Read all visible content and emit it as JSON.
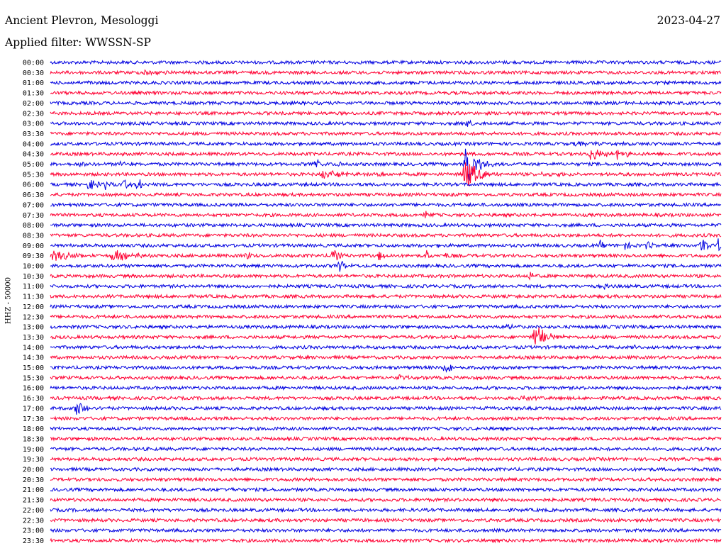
{
  "header": {
    "station": "Ancient Plevron, Mesologgi",
    "date": "2023-04-27",
    "filter": "Applied filter: WWSSN-SP"
  },
  "chart_data": {
    "type": "line",
    "title": "Ancient Plevron, Mesologgi",
    "ylabel": "HHZ - 50000",
    "colors": [
      "#0000e0",
      "#ff0033"
    ],
    "traces": [
      {
        "label": "00:00",
        "events": []
      },
      {
        "label": "00:30",
        "events": [
          {
            "x": 0.14,
            "amp": 0.5,
            "dur": 0.03
          }
        ]
      },
      {
        "label": "01:00",
        "events": [
          {
            "x": 0.055,
            "amp": 0.2,
            "dur": 0.01
          }
        ]
      },
      {
        "label": "01:30",
        "events": []
      },
      {
        "label": "02:00",
        "events": []
      },
      {
        "label": "02:30",
        "events": []
      },
      {
        "label": "03:00",
        "events": [
          {
            "x": 0.617,
            "amp": 0.6,
            "dur": 0.02
          }
        ]
      },
      {
        "label": "03:30",
        "events": []
      },
      {
        "label": "04:00",
        "events": [
          {
            "x": 0.78,
            "amp": 0.4,
            "dur": 0.05
          }
        ]
      },
      {
        "label": "04:30",
        "events": [
          {
            "x": 0.805,
            "amp": 1.0,
            "dur": 0.04
          },
          {
            "x": 0.845,
            "amp": 0.7,
            "dur": 0.01
          },
          {
            "x": 0.86,
            "amp": 0.6,
            "dur": 0.01
          }
        ]
      },
      {
        "label": "05:00",
        "events": [
          {
            "x": 0.045,
            "amp": 0.8,
            "dur": 0.01
          },
          {
            "x": 0.105,
            "amp": 0.9,
            "dur": 0.01
          },
          {
            "x": 0.395,
            "amp": 0.6,
            "dur": 0.02
          },
          {
            "x": 0.43,
            "amp": 0.5,
            "dur": 0.01
          },
          {
            "x": 0.617,
            "amp": 4.5,
            "dur": 0.03
          }
        ]
      },
      {
        "label": "05:30",
        "events": [
          {
            "x": 0.405,
            "amp": 0.7,
            "dur": 0.05
          },
          {
            "x": 0.49,
            "amp": 0.9,
            "dur": 0.01
          },
          {
            "x": 0.617,
            "amp": 2.5,
            "dur": 0.04
          },
          {
            "x": 0.72,
            "amp": 0.2,
            "dur": 0.13
          }
        ]
      },
      {
        "label": "06:00",
        "events": [
          {
            "x": 0.057,
            "amp": 1.2,
            "dur": 0.015
          },
          {
            "x": 0.08,
            "amp": 0.9,
            "dur": 0.01
          },
          {
            "x": 0.11,
            "amp": 1.0,
            "dur": 0.01
          },
          {
            "x": 0.13,
            "amp": 1.1,
            "dur": 0.015
          }
        ]
      },
      {
        "label": "06:30",
        "events": []
      },
      {
        "label": "07:00",
        "events": []
      },
      {
        "label": "07:30",
        "events": [
          {
            "x": 0.558,
            "amp": 0.6,
            "dur": 0.01
          }
        ]
      },
      {
        "label": "08:00",
        "events": []
      },
      {
        "label": "08:30",
        "events": []
      },
      {
        "label": "09:00",
        "events": [
          {
            "x": 0.82,
            "amp": 0.6,
            "dur": 0.01
          },
          {
            "x": 0.855,
            "amp": 0.7,
            "dur": 0.02
          },
          {
            "x": 0.89,
            "amp": 0.8,
            "dur": 0.01
          },
          {
            "x": 0.97,
            "amp": 1.2,
            "dur": 0.02
          },
          {
            "x": 0.995,
            "amp": 1.1,
            "dur": 0.01
          }
        ]
      },
      {
        "label": "09:30",
        "events": [
          {
            "x": 0.005,
            "amp": 0.9,
            "dur": 0.05
          },
          {
            "x": 0.09,
            "amp": 1.0,
            "dur": 0.05
          },
          {
            "x": 0.292,
            "amp": 1.0,
            "dur": 0.01
          },
          {
            "x": 0.42,
            "amp": 1.1,
            "dur": 0.02
          },
          {
            "x": 0.49,
            "amp": 1.0,
            "dur": 0.015
          },
          {
            "x": 0.56,
            "amp": 0.8,
            "dur": 0.01
          },
          {
            "x": 0.59,
            "amp": 0.7,
            "dur": 0.01
          }
        ]
      },
      {
        "label": "10:00",
        "events": [
          {
            "x": 0.43,
            "amp": 1.0,
            "dur": 0.015
          }
        ]
      },
      {
        "label": "10:30",
        "events": [
          {
            "x": 0.715,
            "amp": 1.2,
            "dur": 0.01
          }
        ]
      },
      {
        "label": "11:00",
        "events": [
          {
            "x": 0.825,
            "amp": 0.6,
            "dur": 0.01
          }
        ]
      },
      {
        "label": "11:30",
        "events": [
          {
            "x": 0.045,
            "amp": 0.2,
            "dur": 0.03
          },
          {
            "x": 0.698,
            "amp": 0.3,
            "dur": 0.01
          }
        ]
      },
      {
        "label": "12:00",
        "events": []
      },
      {
        "label": "12:30",
        "events": []
      },
      {
        "label": "13:00",
        "events": [
          {
            "x": 0.68,
            "amp": 0.3,
            "dur": 0.02
          }
        ]
      },
      {
        "label": "13:30",
        "events": [
          {
            "x": 0.72,
            "amp": 2.3,
            "dur": 0.03
          }
        ]
      },
      {
        "label": "14:00",
        "events": [
          {
            "x": 0.87,
            "amp": 0.2,
            "dur": 0.01
          }
        ]
      },
      {
        "label": "14:30",
        "events": [
          {
            "x": 0.775,
            "amp": 0.2,
            "dur": 0.03
          }
        ]
      },
      {
        "label": "15:00",
        "events": [
          {
            "x": 0.585,
            "amp": 0.8,
            "dur": 0.04
          },
          {
            "x": 0.655,
            "amp": 0.2,
            "dur": 0.04
          }
        ]
      },
      {
        "label": "15:30",
        "events": [
          {
            "x": 0.52,
            "amp": 0.4,
            "dur": 0.025
          }
        ]
      },
      {
        "label": "16:00",
        "events": []
      },
      {
        "label": "16:30",
        "events": [
          {
            "x": 0.7,
            "amp": 0.4,
            "dur": 0.03
          }
        ]
      },
      {
        "label": "17:00",
        "events": [
          {
            "x": 0.038,
            "amp": 1.3,
            "dur": 0.025
          },
          {
            "x": 0.63,
            "amp": 0.2,
            "dur": 0.05
          }
        ]
      },
      {
        "label": "17:30",
        "events": []
      },
      {
        "label": "18:00",
        "events": []
      },
      {
        "label": "18:30",
        "events": []
      },
      {
        "label": "19:00",
        "events": []
      },
      {
        "label": "19:30",
        "events": []
      },
      {
        "label": "20:00",
        "events": []
      },
      {
        "label": "20:30",
        "events": []
      },
      {
        "label": "21:00",
        "events": [
          {
            "x": 0.265,
            "amp": 0.4,
            "dur": 0.01
          }
        ]
      },
      {
        "label": "21:30",
        "events": []
      },
      {
        "label": "22:00",
        "events": []
      },
      {
        "label": "22:30",
        "events": []
      },
      {
        "label": "23:00",
        "events": []
      },
      {
        "label": "23:30",
        "events": []
      }
    ]
  }
}
